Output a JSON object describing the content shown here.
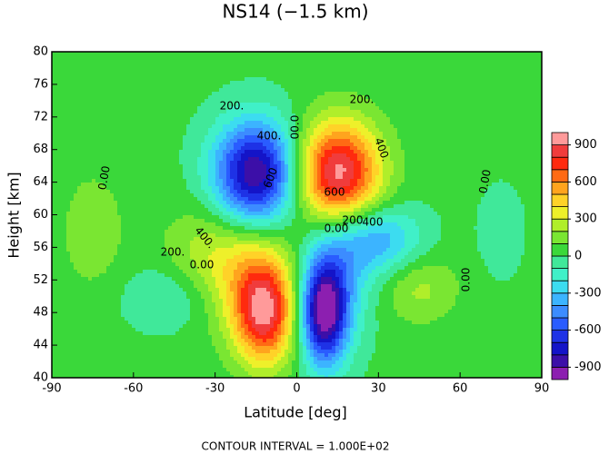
{
  "chart_data": {
    "type": "contour",
    "title": "NS14 (−1.5 km)",
    "x_label": "Latitude [deg]",
    "y_label": "Height [km]",
    "footer": "CONTOUR INTERVAL = 1.000E+02",
    "contour_interval": 100,
    "xlim": [
      -90,
      90
    ],
    "xticks": [
      -90,
      -60,
      -30,
      0,
      30,
      60,
      90
    ],
    "ylim": [
      40,
      80
    ],
    "yticks": [
      40,
      44,
      48,
      52,
      56,
      60,
      64,
      68,
      72,
      76,
      80
    ],
    "clim": [
      -1000,
      1000
    ],
    "cticks": [
      900,
      600,
      300,
      0,
      -300,
      -600,
      -900
    ],
    "colors": [
      "#8c1fb0",
      "#3c0fa8",
      "#1414c8",
      "#1e32e6",
      "#2a5cff",
      "#3c8cff",
      "#3cb4ff",
      "#3cdcf0",
      "#40f0c8",
      "#40e89a",
      "#3ad83a",
      "#7ae632",
      "#b0ee2a",
      "#eef02a",
      "#ffd228",
      "#ffa41e",
      "#ff6a14",
      "#ff2a0e",
      "#f03c3c",
      "#ff9a9a"
    ],
    "features": [
      {
        "lat": 15,
        "height": 65,
        "value": 950
      },
      {
        "lat": -15,
        "height": 65,
        "value": -950
      },
      {
        "lat": -12,
        "height": 48,
        "value": 850
      },
      {
        "lat": -25,
        "height": 54,
        "value": 350
      },
      {
        "lat": 10,
        "height": 48,
        "value": -950
      },
      {
        "lat": 30,
        "height": 57,
        "value": -400
      },
      {
        "lat": 15,
        "height": 53,
        "value": -300
      },
      {
        "lat": 45,
        "height": 51,
        "value": 200
      },
      {
        "lat": -45,
        "height": 50,
        "value": -200
      },
      {
        "lat": -75,
        "height": 58,
        "value": 150
      },
      {
        "lat": 75,
        "height": 58,
        "value": -100
      }
    ],
    "contour_labels": [
      "200.",
      "400.",
      "600",
      "00.0",
      "200.",
      "400.",
      "600",
      "0.00",
      "0.00",
      "400.",
      "200.",
      "0.00",
      "0.00",
      "200",
      "400",
      "0.00"
    ]
  }
}
